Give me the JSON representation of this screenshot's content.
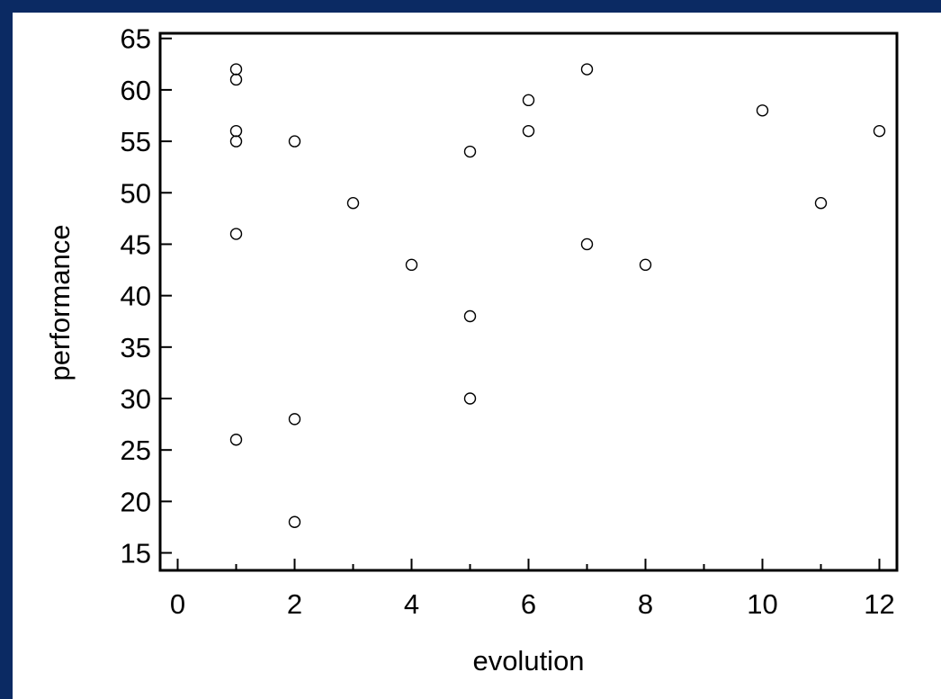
{
  "chart_data": {
    "type": "scatter",
    "title": "",
    "xlabel": "evolution",
    "ylabel": "performance",
    "xlim": [
      -0.3,
      12.3
    ],
    "ylim": [
      13.3,
      65.5
    ],
    "xticks": [
      0,
      2,
      4,
      6,
      8,
      10,
      12
    ],
    "xticks_minor": [
      1,
      3,
      5,
      7,
      9,
      11
    ],
    "yticks": [
      15,
      20,
      25,
      30,
      35,
      40,
      45,
      50,
      55,
      60,
      65
    ],
    "grid": false,
    "legend": "none",
    "marker": "open-circle",
    "colors": {
      "frame": "#0b2a63",
      "plot_background": "#ffffff",
      "axes": "#000000",
      "marker": "#000000"
    },
    "points": [
      {
        "x": 1,
        "y": 62
      },
      {
        "x": 1,
        "y": 61
      },
      {
        "x": 1,
        "y": 56
      },
      {
        "x": 1,
        "y": 55
      },
      {
        "x": 1,
        "y": 46
      },
      {
        "x": 1,
        "y": 26
      },
      {
        "x": 2,
        "y": 55
      },
      {
        "x": 2,
        "y": 28
      },
      {
        "x": 2,
        "y": 18
      },
      {
        "x": 3,
        "y": 49
      },
      {
        "x": 4,
        "y": 43
      },
      {
        "x": 5,
        "y": 54
      },
      {
        "x": 5,
        "y": 38
      },
      {
        "x": 5,
        "y": 30
      },
      {
        "x": 6,
        "y": 59
      },
      {
        "x": 6,
        "y": 56
      },
      {
        "x": 7,
        "y": 62
      },
      {
        "x": 7,
        "y": 45
      },
      {
        "x": 8,
        "y": 43
      },
      {
        "x": 10,
        "y": 58
      },
      {
        "x": 11,
        "y": 49
      },
      {
        "x": 12,
        "y": 56
      }
    ]
  }
}
